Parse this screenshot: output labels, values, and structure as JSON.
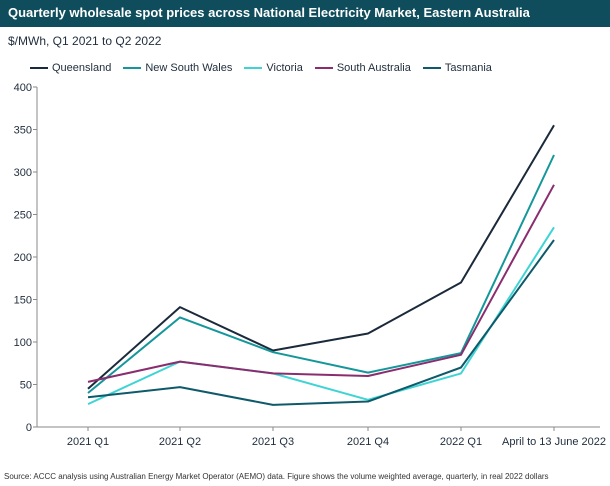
{
  "header": {
    "title": "Quarterly wholesale spot prices across National Electricity Market, Eastern Australia",
    "subtitle": "$/MWh, Q1 2021 to Q2 2022"
  },
  "footer": {
    "source": "Source: ACCC analysis using Australian Energy Market Operator (AEMO) data. Figure shows the volume weighted average, quarterly, in real 2022 dollars"
  },
  "chart_data": {
    "type": "line",
    "title": "Quarterly wholesale spot prices across National Electricity Market, Eastern Australia",
    "ylabel": "$/MWh",
    "categories": [
      "2021 Q1",
      "2021 Q2",
      "2021 Q3",
      "2021 Q4",
      "2022 Q1",
      "April to 13 June 2022"
    ],
    "ylim": [
      0,
      400
    ],
    "yticks": [
      0,
      50,
      100,
      150,
      200,
      250,
      300,
      350,
      400
    ],
    "grid": false,
    "legend_position": "top",
    "series": [
      {
        "name": "Queensland",
        "color": "#1b2a3a",
        "values": [
          45,
          141,
          90,
          110,
          170,
          355
        ]
      },
      {
        "name": "New South Wales",
        "color": "#14979a",
        "values": [
          40,
          129,
          88,
          64,
          87,
          320
        ]
      },
      {
        "name": "Victoria",
        "color": "#3fd4d4",
        "values": [
          27,
          77,
          63,
          32,
          63,
          235
        ]
      },
      {
        "name": "South Australia",
        "color": "#8a2d6e",
        "values": [
          53,
          77,
          63,
          60,
          85,
          285
        ]
      },
      {
        "name": "Tasmania",
        "color": "#0f5a6a",
        "values": [
          35,
          47,
          26,
          30,
          70,
          220
        ]
      }
    ]
  }
}
